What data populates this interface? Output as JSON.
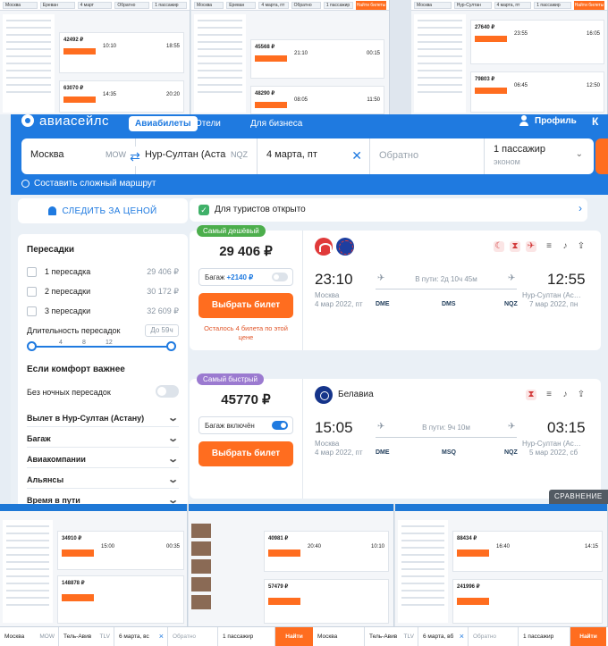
{
  "header": {
    "logo": "авиасейлс",
    "tabs": [
      "Авиабилеты",
      "Отели",
      "Для бизнеса"
    ],
    "profile": "Профиль",
    "extra_mark": "К"
  },
  "search": {
    "origin": "Москва",
    "origin_code": "MOW",
    "destination": "Нур-Султан (Аста",
    "destination_code": "NQZ",
    "date": "4 марта, пт",
    "return_placeholder": "Обратно",
    "passengers": "1 пассажир",
    "cabin": "эконом",
    "complex_route": "Составить сложный маршрут"
  },
  "sidebar": {
    "track_price": "СЛЕДИТЬ ЗА ЦЕНОЙ",
    "transfers_title": "Пересадки",
    "transfers": [
      {
        "label": "1 пересадка",
        "price": "29 406 ₽"
      },
      {
        "label": "2 пересадки",
        "price": "30 172 ₽"
      },
      {
        "label": "3 пересадки",
        "price": "32 609 ₽"
      }
    ],
    "layover_title": "Длительность пересадок",
    "layover_max": "До 59ч",
    "layover_ticks": [
      "4",
      "8",
      "12"
    ],
    "comfort_title": "Если комфорт важнее",
    "no_night": "Без ночных пересадок",
    "sections": [
      "Вылет в Нур-Султан (Астану)",
      "Багаж",
      "Авиакомпании",
      "Альянсы",
      "Время в пути"
    ]
  },
  "notice": {
    "text": "Для туристов открыто"
  },
  "tickets": [
    {
      "badge": "Самый дешёвый",
      "badge_color": "#4cae4c",
      "price": "29 406 ₽",
      "baggage_label": "Багаж",
      "baggage_price": "+2140 ₽",
      "baggage_on": false,
      "buy": "Выбрать билет",
      "note": "Осталось 4 билета по этой цене",
      "airline_name": "",
      "dep_time": "23:10",
      "dep_city": "Москва",
      "dep_date": "4 мар 2022, пт",
      "duration": "В пути: 2д 10ч 45м",
      "arr_time": "12:55",
      "arr_city": "Нур-Султан (Ас…",
      "arr_date": "7 мар 2022, пн",
      "airports": [
        "DME",
        "DMS",
        "NQZ"
      ]
    },
    {
      "badge": "Самый быстрый",
      "badge_color": "#9b7ad0",
      "price": "45770 ₽",
      "baggage_label": "Багаж включён",
      "baggage_price": "",
      "baggage_on": true,
      "buy": "Выбрать билет",
      "note": "",
      "airline_name": "Белавиа",
      "dep_time": "15:05",
      "dep_city": "Москва",
      "dep_date": "4 мар 2022, пт",
      "duration": "В пути: 9ч 10м",
      "arr_time": "03:15",
      "arr_city": "Нур-Султан (Ас…",
      "arr_date": "5 мар 2022, сб",
      "airports": [
        "DME",
        "MSQ",
        "NQZ"
      ]
    }
  ],
  "compare": "СРАВНЕНИЕ БИЛЕТ",
  "collage_top": [
    {
      "from": "Москва",
      "to": "Ереван",
      "date": "4 март",
      "back": "Обратно",
      "pax": "1 пассажир",
      "go": "Найти билеты",
      "prices": [
        "42492 ₽",
        "63070 ₽"
      ],
      "times": [
        "10:10",
        "18:55",
        "14:35",
        "20:20"
      ]
    },
    {
      "from": "Москва",
      "to": "Ереван",
      "date": "4 марта, пт",
      "back": "Обратно",
      "pax": "1 пассажир",
      "go": "Найти билеты",
      "prices": [
        "45568 ₽",
        "48290 ₽"
      ],
      "times": [
        "21:10",
        "00:15",
        "08:05",
        "11:50"
      ]
    },
    {
      "from": "Москва",
      "to": "Нур-Султан",
      "date": "4 марта, пт",
      "back": "Обратно",
      "pax": "1 пассажир",
      "go": "Найти билеты",
      "prices": [
        "27640 ₽",
        "79803 ₽"
      ],
      "times": [
        "23:55",
        "16:05",
        "06:45",
        "12:50"
      ]
    }
  ],
  "collage_bottom": {
    "prices": [
      "34910 ₽",
      "148878 ₽",
      "40981 ₽",
      "57479 ₽",
      "88434 ₽",
      "241996 ₽"
    ],
    "times": [
      "15:00",
      "00:35",
      "20:40",
      "10:10",
      "16:40",
      "14:15"
    ],
    "search_bar": [
      {
        "text": "Москва",
        "code": "MOW"
      },
      {
        "text": "Тель-Авив",
        "code": "TLV"
      },
      {
        "text": "6 марта, вс",
        "code": "×"
      },
      {
        "text": "Обратно",
        "code": ""
      },
      {
        "text": "1 пассажир",
        "code": ""
      }
    ],
    "search_bar_2": [
      {
        "text": "Москва",
        "code": "MOW"
      },
      {
        "text": "Тель-Авив",
        "code": "TLV"
      },
      {
        "text": "6 марта, вб",
        "code": "×"
      },
      {
        "text": "Обратно",
        "code": ""
      },
      {
        "text": "1 пассажир",
        "code": ""
      }
    ],
    "go": "Найти билеты"
  }
}
